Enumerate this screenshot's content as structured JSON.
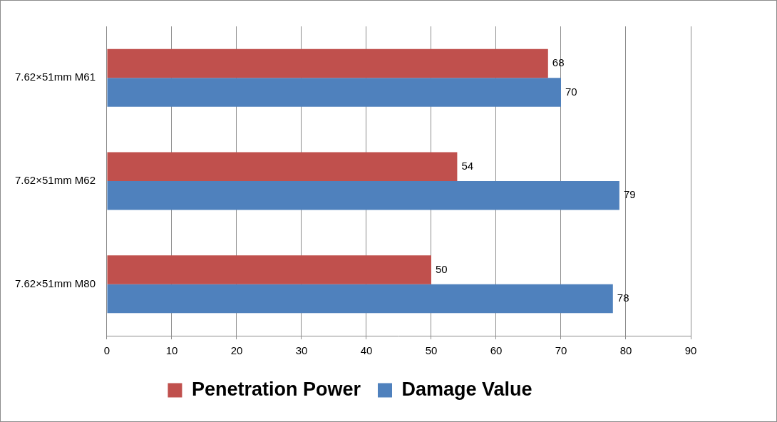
{
  "chart_data": {
    "type": "bar",
    "orientation": "horizontal",
    "categories": [
      "7.62×51mm M61",
      "7.62×51mm M62",
      "7.62×51mm M80"
    ],
    "series": [
      {
        "name": "Penetration Power",
        "color": "#c0504d",
        "values": [
          68,
          54,
          50
        ]
      },
      {
        "name": "Damage Value",
        "color": "#4f81bd",
        "values": [
          70,
          79,
          78
        ]
      }
    ],
    "xlim": [
      0,
      90
    ],
    "xticks": [
      0,
      10,
      20,
      30,
      40,
      50,
      60,
      70,
      80,
      90
    ],
    "grid": true,
    "legend": "bottom",
    "data_labels": true
  }
}
